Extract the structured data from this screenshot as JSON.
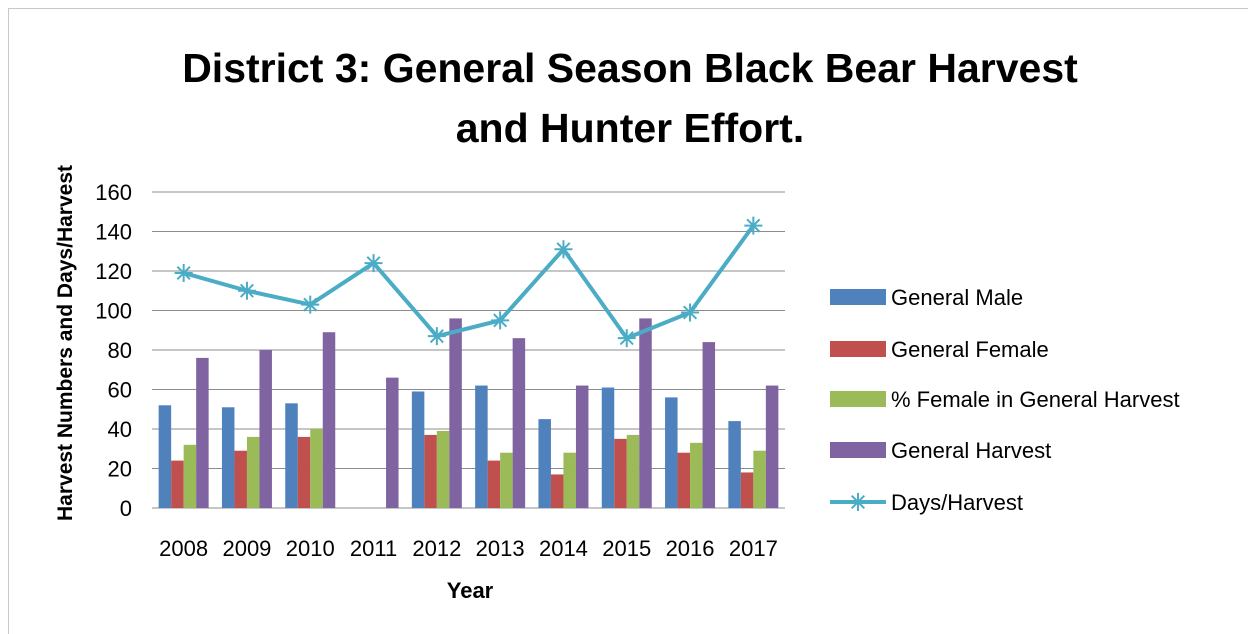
{
  "chart_data": {
    "type": "bar",
    "title_line1": "District 3:  General Season Black Bear Harvest",
    "title_line2": "and Hunter Effort.",
    "xlabel": "Year",
    "ylabel": "Harvest Numbers and Days/Harvest",
    "ylim": [
      0,
      160
    ],
    "y_ticks": [
      0,
      20,
      40,
      60,
      80,
      100,
      120,
      140,
      160
    ],
    "grid": true,
    "legend_position": "right",
    "categories": [
      "2008",
      "2009",
      "2010",
      "2011",
      "2012",
      "2013",
      "2014",
      "2015",
      "2016",
      "2017"
    ],
    "series": [
      {
        "name": "General Male",
        "type": "bar",
        "color": "#4f81bd",
        "values": [
          52,
          51,
          53,
          null,
          59,
          62,
          45,
          61,
          56,
          44
        ]
      },
      {
        "name": "General Female",
        "type": "bar",
        "color": "#c0504d",
        "values": [
          24,
          29,
          36,
          null,
          37,
          24,
          17,
          35,
          28,
          18
        ]
      },
      {
        "name": "% Female in General Harvest",
        "type": "bar",
        "color": "#9bbb59",
        "values": [
          32,
          36,
          40,
          null,
          39,
          28,
          28,
          37,
          33,
          29
        ]
      },
      {
        "name": "General Harvest",
        "type": "bar",
        "color": "#8064a2",
        "values": [
          76,
          80,
          89,
          66,
          96,
          86,
          62,
          96,
          84,
          62
        ]
      },
      {
        "name": "Days/Harvest",
        "type": "line",
        "color": "#4bacc6",
        "values": [
          119,
          110,
          103,
          124,
          87,
          95,
          131,
          86,
          99,
          143
        ]
      }
    ]
  }
}
